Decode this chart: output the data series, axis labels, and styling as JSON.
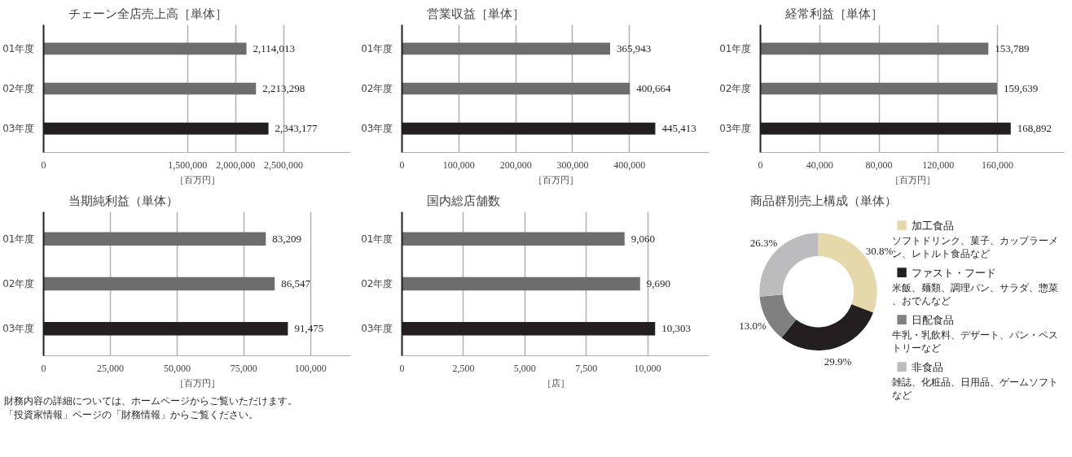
{
  "chart_data": [
    {
      "type": "bar",
      "orientation": "horizontal",
      "title": "チェーン全店売上高［単体］",
      "xlabel": "［百万円］",
      "categories": [
        "01年度",
        "02年度",
        "03年度"
      ],
      "values": [
        2114013,
        2213298,
        2343177
      ],
      "value_labels": [
        "2,114,013",
        "2,213,298",
        "2,343,177"
      ],
      "colors": [
        "#6d6d6d",
        "#6d6d6d",
        "#231f20"
      ],
      "xlim": [
        0,
        3200000
      ],
      "xticks": [
        0,
        {
          "value": 1500000,
          "label": "1,500,000"
        },
        {
          "value": 2000000,
          "label": "2,000,000"
        },
        {
          "value": 2500000,
          "label": "2,500,000"
        }
      ],
      "grid": "x"
    },
    {
      "type": "bar",
      "orientation": "horizontal",
      "title": "営業収益［単体］",
      "xlabel": "［百万円］",
      "categories": [
        "01年度",
        "02年度",
        "03年度"
      ],
      "values": [
        365943,
        400664,
        445413
      ],
      "value_labels": [
        "365,943",
        "400,664",
        "445,413"
      ],
      "colors": [
        "#6d6d6d",
        "#6d6d6d",
        "#231f20"
      ],
      "xlim": [
        0,
        540000
      ],
      "xticks": [
        0,
        {
          "value": 100000,
          "label": "100,000"
        },
        {
          "value": 200000,
          "label": "200,000"
        },
        {
          "value": 300000,
          "label": "300,000"
        },
        {
          "value": 400000,
          "label": "400,000"
        }
      ],
      "grid": "x"
    },
    {
      "type": "bar",
      "orientation": "horizontal",
      "title": "経常利益［単体］",
      "xlabel": "［百万円］",
      "categories": [
        "01年度",
        "02年度",
        "03年度"
      ],
      "values": [
        153789,
        159639,
        168892
      ],
      "value_labels": [
        "153,789",
        "159,639",
        "168,892"
      ],
      "colors": [
        "#6d6d6d",
        "#6d6d6d",
        "#231f20"
      ],
      "xlim": [
        0,
        205000
      ],
      "xticks": [
        0,
        {
          "value": 40000,
          "label": "40,000"
        },
        {
          "value": 80000,
          "label": "80,000"
        },
        {
          "value": 120000,
          "label": "120,000"
        },
        {
          "value": 160000,
          "label": "160,000"
        }
      ],
      "grid": "x"
    },
    {
      "type": "bar",
      "orientation": "horizontal",
      "title": "当期純利益（単体）",
      "xlabel": "［百万円］",
      "categories": [
        "01年度",
        "02年度",
        "03年度"
      ],
      "values": [
        83209,
        86547,
        91475
      ],
      "value_labels": [
        "83,209",
        "86,547",
        "91,475"
      ],
      "colors": [
        "#6d6d6d",
        "#6d6d6d",
        "#231f20"
      ],
      "xlim": [
        0,
        115000
      ],
      "xticks": [
        0,
        {
          "value": 25000,
          "label": "25,000"
        },
        {
          "value": 50000,
          "label": "50,000"
        },
        {
          "value": 75000,
          "label": "75,000"
        },
        {
          "value": 100000,
          "label": "100,000"
        }
      ],
      "grid": "x",
      "annotations": [
        "財務内容の詳細については、ホームページからご覧いただけます。",
        "「投資家情報」ページの「財務情報」からご覧ください。"
      ]
    },
    {
      "type": "bar",
      "orientation": "horizontal",
      "title": "国内総店舗数",
      "xlabel": "［店］",
      "categories": [
        "01年度",
        "02年度",
        "03年度"
      ],
      "values": [
        9060,
        9690,
        10303
      ],
      "value_labels": [
        "9,060",
        "9,690",
        "10,303"
      ],
      "colors": [
        "#6d6d6d",
        "#6d6d6d",
        "#231f20"
      ],
      "xlim": [
        0,
        12500
      ],
      "xticks": [
        0,
        {
          "value": 2500,
          "label": "2,500"
        },
        {
          "value": 5000,
          "label": "5,000"
        },
        {
          "value": 7500,
          "label": "7,500"
        },
        {
          "value": 10000,
          "label": "10,000"
        }
      ],
      "grid": "x"
    },
    {
      "type": "donut",
      "legend": "right",
      "title": "商品群別売上構成（単体）",
      "categories": [
        "加工食品",
        "ファスト・フード",
        "日配食品",
        "非食品"
      ],
      "values": [
        30.8,
        29.9,
        13.0,
        26.3
      ],
      "colors": [
        "#e5d9ab",
        "#231f20",
        "#808080",
        "#bcbcbe"
      ],
      "value_labels": [
        "30.8%",
        "29.9%",
        "13.0%",
        "26.3%"
      ],
      "annotations": [
        "ソフトドリンク、菓子、カップラーメン、レトルト食品など",
        "米飯、麺類、調理パン、サラダ、惣菜、おでんなど",
        "牛乳・乳飲料、デザート、パン・ペストリーなど",
        "雑誌、化粧品、日用品、ゲームソフトなど"
      ]
    }
  ]
}
